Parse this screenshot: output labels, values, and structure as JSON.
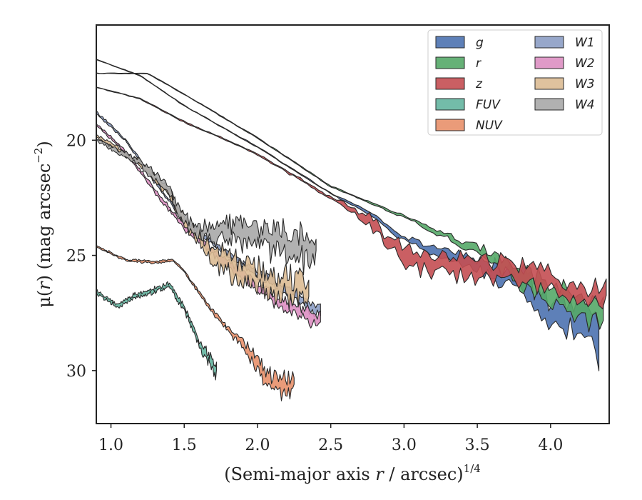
{
  "chart_data": {
    "type": "area",
    "xlabel_pre": "(Semi-major axis ",
    "xlabel_var": "r",
    "xlabel_post": " / arcsec)",
    "xlabel_sup": "1/4",
    "ylabel_pre": "μ(",
    "ylabel_var": "r",
    "ylabel_post": ") (mag arcsec",
    "ylabel_sup": "−2",
    "ylabel_close": ")",
    "xlim": [
      0.9,
      4.4
    ],
    "ylim": [
      32.3,
      15.0
    ],
    "y_inverted": true,
    "xticks": [
      "1.0",
      "1.5",
      "2.0",
      "2.5",
      "3.0",
      "3.5",
      "4.0"
    ],
    "yticks": [
      "20",
      "25",
      "30"
    ],
    "grid": false,
    "legend_placement": "top-right",
    "series": [
      {
        "name": "g",
        "color": "#4c72b0",
        "x_start": 0.9,
        "x_end": 4.33,
        "points": [
          [
            0.9,
            16.5
          ],
          [
            1.2,
            17.2
          ],
          [
            1.5,
            18.5
          ],
          [
            2.0,
            20.3
          ],
          [
            2.5,
            22.3
          ],
          [
            2.8,
            23.3
          ],
          [
            3.0,
            24.3
          ],
          [
            3.5,
            25.4
          ],
          [
            3.8,
            26.3
          ],
          [
            4.0,
            27.5
          ],
          [
            4.2,
            28.0
          ],
          [
            4.33,
            28.5
          ]
        ],
        "noise": [
          [
            0.9,
            0.02
          ],
          [
            2.5,
            0.05
          ],
          [
            3.0,
            0.2
          ],
          [
            3.5,
            0.6
          ],
          [
            3.8,
            1.0
          ],
          [
            4.33,
            1.5
          ]
        ]
      },
      {
        "name": "r",
        "color": "#55a868",
        "x_start": 0.9,
        "x_end": 4.36,
        "points": [
          [
            0.9,
            17.1
          ],
          [
            1.25,
            17.1
          ],
          [
            1.5,
            18.0
          ],
          [
            2.0,
            19.9
          ],
          [
            2.5,
            22.0
          ],
          [
            2.8,
            22.8
          ],
          [
            3.0,
            23.3
          ],
          [
            3.5,
            24.8
          ],
          [
            3.8,
            25.9
          ],
          [
            4.0,
            26.7
          ],
          [
            4.2,
            27.2
          ],
          [
            4.36,
            27.7
          ]
        ],
        "noise": [
          [
            0.9,
            0.02
          ],
          [
            2.5,
            0.05
          ],
          [
            3.0,
            0.1
          ],
          [
            3.5,
            0.4
          ],
          [
            3.8,
            0.8
          ],
          [
            4.36,
            1.0
          ]
        ]
      },
      {
        "name": "z",
        "color": "#c44e52",
        "x_start": 0.9,
        "x_end": 4.38,
        "points": [
          [
            0.9,
            17.7
          ],
          [
            1.2,
            18.2
          ],
          [
            1.5,
            19.2
          ],
          [
            2.0,
            20.6
          ],
          [
            2.5,
            22.5
          ],
          [
            2.75,
            23.4
          ],
          [
            3.0,
            25.2
          ],
          [
            3.5,
            25.6
          ],
          [
            3.8,
            25.8
          ],
          [
            4.0,
            26.1
          ],
          [
            4.2,
            26.7
          ],
          [
            4.38,
            26.7
          ]
        ],
        "noise": [
          [
            0.9,
            0.02
          ],
          [
            2.5,
            0.1
          ],
          [
            2.8,
            0.5
          ],
          [
            3.0,
            0.8
          ],
          [
            3.5,
            0.9
          ],
          [
            4.0,
            0.9
          ],
          [
            4.38,
            0.9
          ]
        ]
      },
      {
        "name": "FUV",
        "color": "#64b5a0",
        "x_start": 0.9,
        "x_end": 1.72,
        "points": [
          [
            0.9,
            26.6
          ],
          [
            1.05,
            27.2
          ],
          [
            1.15,
            26.8
          ],
          [
            1.3,
            26.5
          ],
          [
            1.4,
            26.3
          ],
          [
            1.5,
            27.3
          ],
          [
            1.6,
            28.8
          ],
          [
            1.7,
            29.8
          ],
          [
            1.72,
            30.0
          ]
        ],
        "noise": [
          [
            0.9,
            0.15
          ],
          [
            1.4,
            0.2
          ],
          [
            1.6,
            0.3
          ],
          [
            1.72,
            0.6
          ]
        ]
      },
      {
        "name": "NUV",
        "color": "#e8906a",
        "x_start": 0.9,
        "x_end": 2.25,
        "points": [
          [
            0.9,
            24.6
          ],
          [
            1.1,
            25.2
          ],
          [
            1.3,
            25.3
          ],
          [
            1.42,
            25.2
          ],
          [
            1.5,
            25.7
          ],
          [
            1.7,
            27.5
          ],
          [
            1.9,
            28.9
          ],
          [
            2.0,
            29.8
          ],
          [
            2.1,
            30.6
          ],
          [
            2.25,
            30.7
          ]
        ],
        "noise": [
          [
            0.9,
            0.08
          ],
          [
            1.5,
            0.1
          ],
          [
            1.8,
            0.2
          ],
          [
            2.0,
            0.6
          ],
          [
            2.25,
            0.8
          ]
        ]
      },
      {
        "name": "W1",
        "color": "#8c9dc4",
        "x_start": 0.9,
        "x_end": 2.43,
        "points": [
          [
            0.9,
            18.8
          ],
          [
            1.1,
            20.0
          ],
          [
            1.3,
            21.8
          ],
          [
            1.5,
            23.5
          ],
          [
            1.8,
            25.0
          ],
          [
            2.0,
            25.8
          ],
          [
            2.2,
            26.5
          ],
          [
            2.43,
            27.5
          ]
        ],
        "noise": [
          [
            0.9,
            0.1
          ],
          [
            1.5,
            0.15
          ],
          [
            2.0,
            0.3
          ],
          [
            2.43,
            0.5
          ]
        ]
      },
      {
        "name": "W2",
        "color": "#dd8fc2",
        "x_start": 0.9,
        "x_end": 2.43,
        "points": [
          [
            0.9,
            19.3
          ],
          [
            1.1,
            20.5
          ],
          [
            1.3,
            22.2
          ],
          [
            1.5,
            23.8
          ],
          [
            1.8,
            25.4
          ],
          [
            2.0,
            26.4
          ],
          [
            2.2,
            27.2
          ],
          [
            2.43,
            27.8
          ]
        ],
        "noise": [
          [
            0.9,
            0.1
          ],
          [
            1.5,
            0.2
          ],
          [
            2.0,
            0.4
          ],
          [
            2.43,
            0.6
          ]
        ]
      },
      {
        "name": "W3",
        "color": "#dcbb94",
        "x_start": 0.9,
        "x_end": 2.35,
        "points": [
          [
            0.9,
            19.8
          ],
          [
            1.2,
            21.0
          ],
          [
            1.4,
            22.3
          ],
          [
            1.5,
            23.5
          ],
          [
            1.7,
            25.0
          ],
          [
            1.8,
            25.4
          ],
          [
            2.0,
            26.0
          ],
          [
            2.1,
            26.2
          ],
          [
            2.3,
            26.5
          ],
          [
            2.35,
            26.7
          ]
        ],
        "noise": [
          [
            0.9,
            0.1
          ],
          [
            1.5,
            0.4
          ],
          [
            1.8,
            1.0
          ],
          [
            2.35,
            1.2
          ]
        ]
      },
      {
        "name": "W4",
        "color": "#a8a8a8",
        "x_start": 0.9,
        "x_end": 2.4,
        "points": [
          [
            0.9,
            20.0
          ],
          [
            1.2,
            21.0
          ],
          [
            1.4,
            22.2
          ],
          [
            1.5,
            23.5
          ],
          [
            1.6,
            24.0
          ],
          [
            1.8,
            24.0
          ],
          [
            2.0,
            24.2
          ],
          [
            2.2,
            24.5
          ],
          [
            2.4,
            24.8
          ]
        ],
        "noise": [
          [
            0.9,
            0.1
          ],
          [
            1.5,
            0.5
          ],
          [
            1.8,
            0.9
          ],
          [
            2.4,
            1.3
          ]
        ]
      }
    ]
  }
}
